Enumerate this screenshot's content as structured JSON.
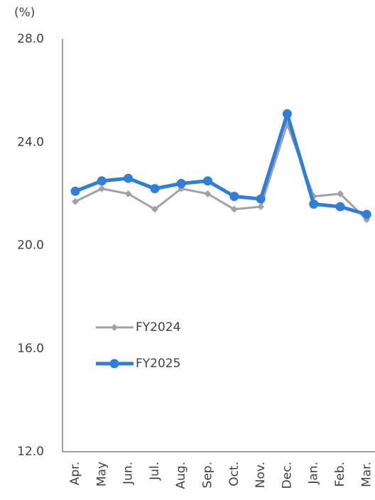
{
  "chart_data": {
    "type": "line",
    "unit_label": "(%)",
    "categories": [
      "Apr.",
      "May",
      "Jun.",
      "Jul.",
      "Aug.",
      "Sep.",
      "Oct.",
      "Nov.",
      "Dec.",
      "Jan.",
      "Feb.",
      "Mar."
    ],
    "series": [
      {
        "name": "FY2024",
        "color": "#a59fad",
        "marker": "diamond",
        "values": [
          21.7,
          22.2,
          22.0,
          21.4,
          22.2,
          22.0,
          21.4,
          21.5,
          24.7,
          21.9,
          22.0,
          21.0
        ]
      },
      {
        "name": "FY2025",
        "color": "#2f7ed8",
        "marker": "circle",
        "values": [
          22.1,
          22.5,
          22.6,
          22.2,
          22.4,
          22.5,
          21.9,
          21.8,
          25.1,
          21.6,
          21.5,
          21.2
        ]
      }
    ],
    "ylim": [
      12,
      28
    ],
    "yticks": [
      {
        "value": 12,
        "label": "12.0"
      },
      {
        "value": 16,
        "label": "16.0"
      },
      {
        "value": 20,
        "label": "20.0"
      },
      {
        "value": 24,
        "label": "24.0"
      },
      {
        "value": 28,
        "label": "28.0"
      }
    ],
    "grid": false,
    "legend": "lower-left"
  }
}
